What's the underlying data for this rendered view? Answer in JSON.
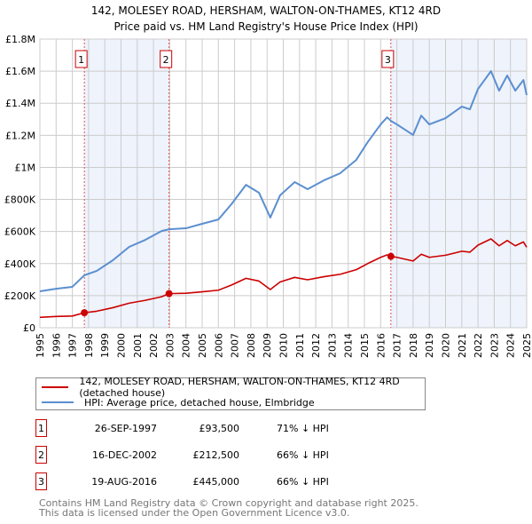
{
  "chart_data": {
    "type": "line",
    "title": "142, MOLESEY ROAD, HERSHAM, WALTON-ON-THAMES, KT12 4RD",
    "subtitle": "Price paid vs. HM Land Registry's House Price Index (HPI)",
    "xlim": [
      1995,
      2025
    ],
    "ylim": [
      0,
      1800000
    ],
    "y_ticks": [
      {
        "v": 0,
        "label": "£0"
      },
      {
        "v": 200000,
        "label": "£200K"
      },
      {
        "v": 400000,
        "label": "£400K"
      },
      {
        "v": 600000,
        "label": "£600K"
      },
      {
        "v": 800000,
        "label": "£800K"
      },
      {
        "v": 1000000,
        "label": "£1M"
      },
      {
        "v": 1200000,
        "label": "£1.2M"
      },
      {
        "v": 1400000,
        "label": "£1.4M"
      },
      {
        "v": 1600000,
        "label": "£1.6M"
      },
      {
        "v": 1800000,
        "label": "£1.8M"
      }
    ],
    "x_ticks": [
      "1995",
      "1996",
      "1997",
      "1998",
      "1999",
      "2000",
      "2001",
      "2002",
      "2003",
      "2004",
      "2005",
      "2006",
      "2007",
      "2008",
      "2009",
      "2010",
      "2011",
      "2012",
      "2013",
      "2014",
      "2015",
      "2016",
      "2017",
      "2018",
      "2019",
      "2020",
      "2021",
      "2022",
      "2023",
      "2024",
      "2025"
    ],
    "grid": true,
    "series": [
      {
        "name": "142, MOLESEY ROAD, HERSHAM, WALTON-ON-THAMES, KT12 4RD (detached house)",
        "color": "#cc0000",
        "x": [
          1995,
          1996,
          1997,
          1997.74,
          1998.5,
          1999.5,
          2000.5,
          2001.5,
          2002.5,
          2002.96,
          2004,
          2005,
          2006,
          2006.8,
          2007.7,
          2008.5,
          2009.2,
          2009.8,
          2010.7,
          2011.5,
          2012.5,
          2013.5,
          2014.5,
          2015.2,
          2016,
          2016.4,
          2016.63,
          2017,
          2018,
          2018.5,
          2019,
          2020,
          2021,
          2021.5,
          2022,
          2022.8,
          2023.3,
          2023.8,
          2024.3,
          2024.8,
          2025
        ],
        "y": [
          65000,
          70000,
          73000,
          93500,
          103000,
          125000,
          153000,
          171000,
          193000,
          212500,
          215000,
          224000,
          234000,
          266000,
          308000,
          291000,
          238000,
          285000,
          314000,
          299000,
          318000,
          333000,
          362000,
          400000,
          439000,
          454000,
          445000,
          439000,
          416000,
          458000,
          439000,
          452000,
          477000,
          471000,
          515000,
          554000,
          511000,
          544000,
          511000,
          535000,
          502000
        ]
      },
      {
        "name": "HPI: Average price, detached house, Elmbridge",
        "color": "#5b8fd0",
        "x": [
          1995,
          1996,
          1997,
          1997.74,
          1998.5,
          1999.5,
          2000.5,
          2001.5,
          2002.5,
          2002.96,
          2004,
          2005,
          2006,
          2006.8,
          2007.7,
          2008.5,
          2009.2,
          2009.8,
          2010.7,
          2011.5,
          2012.5,
          2013.5,
          2014.5,
          2015.2,
          2016,
          2016.4,
          2016.63,
          2017,
          2018,
          2018.5,
          2019,
          2020,
          2021,
          2021.5,
          2022,
          2022.8,
          2023.3,
          2023.8,
          2024.3,
          2024.8,
          2025
        ],
        "y": [
          227000,
          243000,
          255000,
          327000,
          354000,
          421000,
          504000,
          548000,
          603000,
          614000,
          620000,
          648000,
          675000,
          770000,
          891000,
          842000,
          687000,
          825000,
          908000,
          864000,
          919000,
          963000,
          1047000,
          1157000,
          1268000,
          1312000,
          1290000,
          1268000,
          1202000,
          1323000,
          1268000,
          1307000,
          1379000,
          1362000,
          1489000,
          1600000,
          1478000,
          1573000,
          1478000,
          1545000,
          1451000
        ]
      }
    ],
    "sales": [
      {
        "n": "1",
        "x": 1997.74,
        "price": 93500,
        "date": "26-SEP-1997",
        "price_label": "£93,500",
        "delta": "71% ↓ HPI"
      },
      {
        "n": "2",
        "x": 2002.96,
        "price": 212500,
        "date": "16-DEC-2002",
        "price_label": "£212,500",
        "delta": "66% ↓ HPI"
      },
      {
        "n": "3",
        "x": 2016.63,
        "price": 445000,
        "date": "19-AUG-2016",
        "price_label": "£445,000",
        "delta": "66% ↓ HPI"
      }
    ],
    "shaded_ranges": [
      [
        1997.74,
        2002.96
      ],
      [
        2016.63,
        2025
      ]
    ],
    "legend_position": "below"
  },
  "legend": {
    "red": "142, MOLESEY ROAD, HERSHAM, WALTON-ON-THAMES, KT12 4RD (detached house)",
    "blue": "HPI: Average price, detached house, Elmbridge"
  },
  "footer": {
    "line1": "Contains HM Land Registry data © Crown copyright and database right 2025.",
    "line2": "This data is licensed under the Open Government Licence v3.0."
  }
}
